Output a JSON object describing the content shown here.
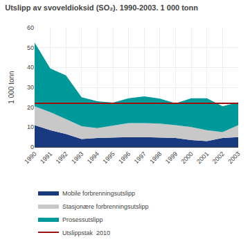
{
  "chart_data": {
    "type": "area",
    "stacked": true,
    "title": "Utslipp av svoveldioksid (SO₂). 1990-2003. 1 000 tonn",
    "ylabel": "1 000 tonn",
    "x": [
      1990,
      1991,
      1992,
      1993,
      1994,
      1995,
      1996,
      1997,
      1998,
      1999,
      2000,
      2001,
      2002,
      2003
    ],
    "xlim": [
      1990,
      2003
    ],
    "xticks": [
      1990,
      1991,
      1992,
      1993,
      1994,
      1995,
      1996,
      1997,
      1998,
      1999,
      2000,
      2001,
      2002,
      2003
    ],
    "ylim": [
      0,
      60
    ],
    "yticks": [
      0,
      10,
      20,
      30,
      40,
      50,
      60
    ],
    "grid": true,
    "legend": "bottom",
    "series": [
      {
        "name": "Mobile forbrenningsutslipp",
        "type": "area",
        "color": "#1a3a80",
        "values": [
          11.0,
          8.5,
          6.5,
          4.0,
          4.5,
          4.8,
          5.0,
          5.0,
          4.8,
          4.5,
          3.5,
          3.0,
          4.5,
          5.0
        ]
      },
      {
        "name": "Stasjonære forbrenningsutslipp",
        "type": "area",
        "color": "#c8c8c8",
        "values": [
          9.5,
          9.0,
          7.5,
          6.5,
          5.0,
          6.0,
          7.0,
          7.0,
          7.0,
          6.5,
          6.5,
          5.5,
          3.0,
          6.0
        ]
      },
      {
        "name": "Prosessutslipp",
        "type": "area",
        "color": "#009999",
        "values": [
          32.0,
          22.0,
          22.0,
          14.5,
          13.5,
          11.5,
          12.5,
          13.5,
          12.5,
          11.0,
          14.5,
          16.0,
          13.0,
          11.5
        ]
      },
      {
        "name": "Utslippstak  2010",
        "type": "line",
        "color": "#991111",
        "values": [
          22.0,
          22.0,
          22.0,
          22.0,
          22.0,
          22.0,
          22.0,
          22.0,
          22.0,
          22.0,
          22.0,
          22.0,
          22.0,
          22.0
        ]
      }
    ]
  }
}
